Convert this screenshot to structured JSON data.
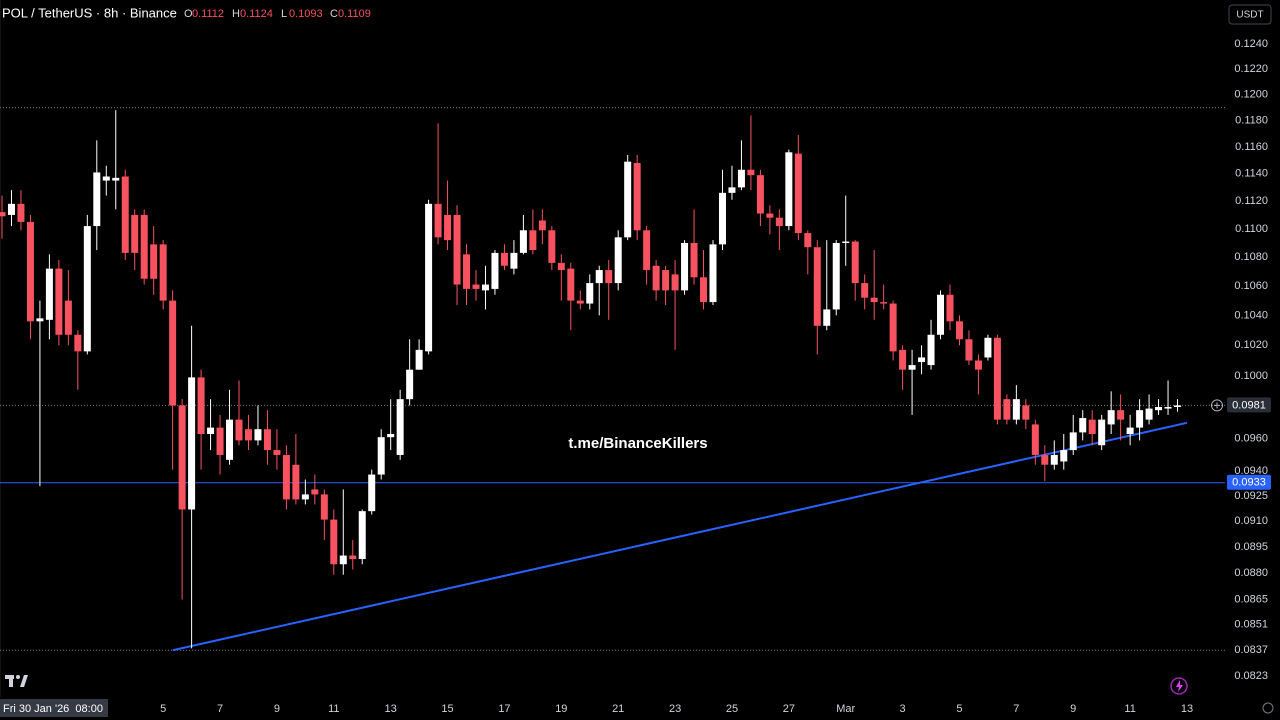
{
  "chart_data": {
    "type": "candlestick",
    "title": "POL / TetherUS · 8h · Binance",
    "ohlc_legend": [
      {
        "label": "O",
        "value": 0.1112
      },
      {
        "label": "H",
        "value": 0.1124
      },
      {
        "label": "L",
        "value": 0.1093
      },
      {
        "label": "C",
        "value": 0.1109
      }
    ],
    "currency_button": "USDT",
    "watermark": "t.me/BinanceKillers",
    "crosshair_time": "Fri 30 Jan '26  08:00",
    "up_color": "#ffffff",
    "down_color": "#f7525f",
    "log_scale": true,
    "grid": false,
    "ylim": [
      0.0812,
      0.1276
    ],
    "yticks": [
      {
        "value": 0.124,
        "label": "0.1240"
      },
      {
        "value": 0.122,
        "label": "0.1220"
      },
      {
        "value": 0.12,
        "label": "0.1200"
      },
      {
        "value": 0.118,
        "label": "0.1180"
      },
      {
        "value": 0.116,
        "label": "0.1160"
      },
      {
        "value": 0.114,
        "label": "0.1140"
      },
      {
        "value": 0.112,
        "label": "0.1120"
      },
      {
        "value": 0.11,
        "label": "0.1100"
      },
      {
        "value": 0.108,
        "label": "0.1080"
      },
      {
        "value": 0.106,
        "label": "0.1060"
      },
      {
        "value": 0.104,
        "label": "0.1040"
      },
      {
        "value": 0.102,
        "label": "0.1020"
      },
      {
        "value": 0.1,
        "label": "0.1000"
      },
      {
        "value": 0.096,
        "label": "0.0960"
      },
      {
        "value": 0.094,
        "label": "0.0940"
      },
      0.0925,
      {
        "value": 0.091,
        "label": "0.0910"
      },
      0.0895,
      {
        "value": 0.088,
        "label": "0.0880"
      },
      0.0865,
      0.0851,
      0.0837,
      0.0823
    ],
    "categories": [
      null,
      null,
      null,
      null,
      null,
      null,
      null,
      null,
      null,
      null,
      null,
      null,
      null,
      null,
      null,
      null,
      null,
      "5",
      null,
      null,
      null,
      null,
      null,
      "7",
      null,
      null,
      null,
      null,
      null,
      "9",
      null,
      null,
      null,
      null,
      null,
      "11",
      null,
      null,
      null,
      null,
      null,
      "13",
      null,
      null,
      null,
      null,
      null,
      "15",
      null,
      null,
      null,
      null,
      null,
      "17",
      null,
      null,
      null,
      null,
      null,
      "19",
      null,
      null,
      null,
      null,
      null,
      "21",
      null,
      null,
      null,
      null,
      null,
      "23",
      null,
      null,
      null,
      null,
      null,
      "25",
      null,
      null,
      null,
      null,
      null,
      "27",
      null,
      null,
      null,
      null,
      null,
      "Mar",
      null,
      null,
      null,
      null,
      null,
      "3",
      null,
      null,
      null,
      null,
      null,
      "5",
      null,
      null,
      null,
      null,
      null,
      "7",
      null,
      null,
      null,
      null,
      null,
      "9",
      null,
      null,
      null,
      null,
      null,
      "11",
      null,
      null,
      null,
      null,
      null,
      "13"
    ],
    "open": [
      0.1112,
      0.111,
      0.1118,
      0.1105,
      0.1036,
      0.1037,
      0.1072,
      0.105,
      0.1027,
      0.1016,
      0.1102,
      0.1135,
      0.1135,
      0.1138,
      0.111,
      0.111,
      0.1089,
      0.1089,
      0.105,
      0.0981,
      0.0917,
      0.0999,
      0.0963,
      0.0967,
      0.0947,
      0.0972,
      0.0966,
      0.0959,
      0.0966,
      0.0953,
      0.095,
      0.0944,
      0.0923,
      0.0929,
      0.0926,
      0.0911,
      0.0885,
      0.089,
      0.0888,
      0.0916,
      0.0938,
      0.0961,
      0.095,
      0.0985,
      0.1004,
      0.1016,
      0.1118,
      0.111,
      0.111,
      0.1082,
      0.1061,
      0.1057,
      0.1058,
      0.1083,
      0.1072,
      0.1083,
      0.1099,
      0.1106,
      0.1099,
      0.1076,
      0.1072,
      0.105,
      0.1048,
      0.1062,
      0.1071,
      0.1062,
      0.1094,
      0.1148,
      0.1099,
      0.1074,
      0.1071,
      0.1068,
      0.1057,
      0.109,
      0.1066,
      0.1049,
      0.1089,
      0.1126,
      0.113,
      0.1143,
      0.1139,
      0.1111,
      0.1108,
      0.1102,
      0.1155,
      0.1097,
      0.1087,
      0.1033,
      0.1044,
      0.109,
      0.1091,
      0.1062,
      0.1052,
      0.1049,
      0.1048,
      0.1017,
      0.1004,
      0.1009,
      0.1007,
      0.1027,
      0.1054,
      0.1036,
      0.1024,
      0.101,
      0.1012,
      0.1025,
      0.0985,
      0.0972,
      0.0981,
      0.0969,
      0.095,
      0.0944,
      0.0946,
      0.0953,
      0.0964,
      0.0972,
      0.0956,
      0.0969,
      0.0978,
      0.0963,
      0.0967,
      0.0972,
      0.0978,
      0.0979,
      0.098,
      null
    ],
    "high": [
      0.1124,
      0.1128,
      0.1128,
      0.111,
      0.105,
      0.1082,
      0.1078,
      0.1071,
      0.103,
      0.111,
      0.1165,
      0.1146,
      0.1188,
      0.1143,
      0.1114,
      0.1114,
      0.1102,
      0.1092,
      0.1057,
      0.0985,
      0.1033,
      0.1004,
      0.0985,
      0.0975,
      0.0991,
      0.0997,
      0.0975,
      0.0981,
      0.0978,
      0.0966,
      0.0956,
      0.0963,
      0.0935,
      0.0938,
      0.0929,
      0.0917,
      0.0929,
      0.0899,
      0.0917,
      0.0941,
      0.0966,
      0.0985,
      0.0991,
      0.1024,
      0.1024,
      0.1121,
      0.1178,
      0.1135,
      0.1117,
      0.1089,
      0.1071,
      0.1074,
      0.1085,
      0.1089,
      0.1092,
      0.111,
      0.1114,
      0.1114,
      0.1102,
      0.1082,
      0.1076,
      0.1057,
      0.1068,
      0.1074,
      0.1078,
      0.1099,
      0.1154,
      0.1154,
      0.1102,
      0.1078,
      0.1074,
      0.1078,
      0.1092,
      0.1114,
      0.1085,
      0.1092,
      0.1143,
      0.1146,
      0.1165,
      0.1184,
      0.1143,
      0.1117,
      0.1114,
      0.1158,
      0.1169,
      0.1099,
      0.1092,
      0.1092,
      0.1092,
      0.1124,
      0.1092,
      0.1068,
      0.1085,
      0.1061,
      0.105,
      0.102,
      0.1017,
      0.102,
      0.1037,
      0.1057,
      0.1061,
      0.104,
      0.103,
      0.1014,
      0.1027,
      0.1027,
      0.0988,
      0.0994,
      0.0985,
      0.0972,
      0.0956,
      0.0959,
      0.0963,
      0.0975,
      0.0978,
      0.0978,
      0.0975,
      0.099,
      0.0988,
      0.0975,
      0.0985,
      0.0988,
      0.0985,
      0.0997,
      0.0985,
      null
    ],
    "low": [
      0.1093,
      0.1102,
      0.1099,
      0.1024,
      0.0931,
      0.1024,
      0.102,
      0.102,
      0.0991,
      0.1014,
      0.1085,
      0.1124,
      0.1114,
      0.1078,
      0.1071,
      0.1061,
      0.1054,
      0.1044,
      0.0941,
      0.0865,
      0.0838,
      0.0941,
      0.0953,
      0.0938,
      0.0944,
      0.0956,
      0.0953,
      0.0956,
      0.0944,
      0.0941,
      0.0917,
      0.092,
      0.092,
      0.092,
      0.0899,
      0.0879,
      0.0879,
      0.0882,
      0.0885,
      0.0914,
      0.0935,
      0.0953,
      0.0947,
      0.0981,
      0.1004,
      0.1014,
      0.1089,
      0.1085,
      0.1047,
      0.1047,
      0.105,
      0.1044,
      0.1054,
      0.1071,
      0.1068,
      0.1082,
      0.1082,
      0.1089,
      0.1071,
      0.105,
      0.103,
      0.1044,
      0.1044,
      0.104,
      0.1037,
      0.1057,
      0.1092,
      0.1092,
      0.1061,
      0.105,
      0.1047,
      0.1017,
      0.1054,
      0.1061,
      0.1044,
      0.1047,
      0.1085,
      0.1121,
      0.1128,
      0.1128,
      0.1102,
      0.1096,
      0.1085,
      0.1099,
      0.1092,
      0.1068,
      0.1014,
      0.103,
      0.104,
      0.1074,
      0.105,
      0.1044,
      0.1037,
      0.1044,
      0.101,
      0.0991,
      0.0975,
      0.1001,
      0.1004,
      0.1024,
      0.103,
      0.102,
      0.1007,
      0.0988,
      0.101,
      0.0969,
      0.0969,
      0.0969,
      0.0966,
      0.0944,
      0.0934,
      0.0941,
      0.0941,
      0.095,
      0.0959,
      0.0956,
      0.0953,
      0.0963,
      0.0959,
      0.0956,
      0.0959,
      0.0969,
      0.0975,
      0.0975,
      0.0977,
      null
    ],
    "close": [
      0.1109,
      0.1118,
      0.1105,
      0.1036,
      0.1038,
      0.1072,
      0.1027,
      0.1027,
      0.1016,
      0.1102,
      0.1141,
      0.1138,
      0.1137,
      0.1083,
      0.1083,
      0.1065,
      0.1065,
      0.105,
      0.0981,
      0.0917,
      0.0999,
      0.0963,
      0.0967,
      0.095,
      0.0972,
      0.0959,
      0.0959,
      0.0966,
      0.0953,
      0.095,
      0.0923,
      0.0923,
      0.0926,
      0.0926,
      0.0911,
      0.0885,
      0.089,
      0.0888,
      0.0916,
      0.0938,
      0.0961,
      0.0963,
      0.0985,
      0.1004,
      0.1017,
      0.1118,
      0.1094,
      0.1092,
      0.1061,
      0.1058,
      0.1058,
      0.1061,
      0.1083,
      0.1074,
      0.1083,
      0.1099,
      0.1085,
      0.1099,
      0.1076,
      0.1071,
      0.105,
      0.1048,
      0.1062,
      0.1071,
      0.1062,
      0.1094,
      0.1149,
      0.1099,
      0.1071,
      0.1057,
      0.1057,
      0.1057,
      0.109,
      0.1066,
      0.1049,
      0.1089,
      0.1126,
      0.113,
      0.1143,
      0.1139,
      0.1111,
      0.1108,
      0.1102,
      0.1156,
      0.1097,
      0.1087,
      0.1033,
      0.1044,
      0.109,
      0.1091,
      0.1062,
      0.1052,
      0.1049,
      0.1048,
      0.1016,
      0.1004,
      0.1007,
      0.1012,
      0.1027,
      0.1054,
      0.1036,
      0.1024,
      0.101,
      0.1004,
      0.1025,
      0.0972,
      0.0972,
      0.0985,
      0.0972,
      0.095,
      0.0944,
      0.095,
      0.0953,
      0.0964,
      0.0973,
      0.0963,
      0.0972,
      0.0978,
      0.0972,
      0.0967,
      0.0978,
      0.0979,
      0.098,
      0.098,
      0.0981,
      null
    ],
    "horizontal_lines": [
      {
        "value": 0.119,
        "color": "#787b86",
        "style": "dotted"
      },
      {
        "value": 0.0837,
        "color": "#787b86",
        "style": "dotted"
      }
    ],
    "current_price": {
      "value": 0.0981,
      "color": "#2a2e39"
    },
    "level_line": {
      "value": 0.0933,
      "color": "#2962ff"
    },
    "trendline": {
      "x": [
        18,
        125
      ],
      "y": [
        0.0837,
        0.097
      ],
      "color": "#2962ff"
    }
  }
}
